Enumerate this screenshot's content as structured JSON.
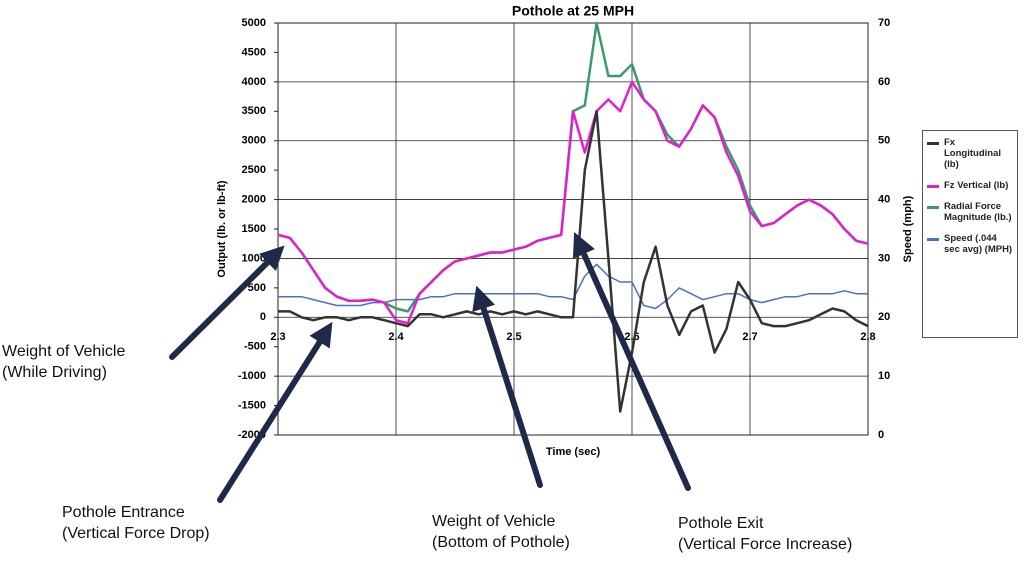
{
  "chart_data": {
    "type": "line",
    "title": "Pothole at 25 MPH",
    "x_label": "Time (sec)",
    "y_label": "Output (lb. or lb-ft)",
    "y2_label": "Speed (mph)",
    "x": [
      2.3,
      2.31,
      2.32,
      2.33,
      2.34,
      2.35,
      2.36,
      2.37,
      2.38,
      2.39,
      2.4,
      2.41,
      2.42,
      2.43,
      2.44,
      2.45,
      2.46,
      2.47,
      2.48,
      2.49,
      2.5,
      2.51,
      2.52,
      2.53,
      2.54,
      2.55,
      2.56,
      2.57,
      2.58,
      2.59,
      2.6,
      2.61,
      2.62,
      2.63,
      2.64,
      2.65,
      2.66,
      2.67,
      2.68,
      2.69,
      2.7,
      2.71,
      2.72,
      2.73,
      2.74,
      2.75,
      2.76,
      2.77,
      2.78,
      2.79,
      2.8
    ],
    "xlim": [
      2.3,
      2.8
    ],
    "xticks": [
      2.3,
      2.4,
      2.5,
      2.6,
      2.7,
      2.8
    ],
    "ylim": [
      -2000,
      5000
    ],
    "yticks": [
      -2000,
      -1500,
      -1000,
      -500,
      0,
      500,
      1000,
      1500,
      2000,
      2500,
      3000,
      3500,
      4000,
      4500,
      5000
    ],
    "y2lim": [
      0,
      70
    ],
    "y2ticks": [
      0,
      10,
      20,
      30,
      40,
      50,
      60,
      70
    ],
    "grid": true,
    "legend": "right",
    "series": [
      {
        "name": "Fx Longitudinal (lb)",
        "color": "#333333",
        "values": [
          100,
          100,
          0,
          -50,
          0,
          0,
          -50,
          0,
          0,
          -50,
          -100,
          -150,
          50,
          50,
          0,
          50,
          100,
          50,
          100,
          50,
          100,
          50,
          100,
          50,
          0,
          0,
          2500,
          3500,
          1000,
          -1600,
          -600,
          600,
          1200,
          200,
          -300,
          100,
          200,
          -600,
          -200,
          600,
          300,
          -100,
          -150,
          -150,
          -100,
          -50,
          50,
          150,
          100,
          -50,
          -150
        ]
      },
      {
        "name": "Fz Vertical (lb)",
        "color": "#e020d0",
        "values": [
          1400,
          1350,
          1100,
          800,
          500,
          350,
          280,
          280,
          300,
          250,
          -50,
          -100,
          400,
          600,
          800,
          950,
          1000,
          1050,
          1100,
          1100,
          1150,
          1200,
          1300,
          1350,
          1400,
          3500,
          2800,
          3500,
          3700,
          3500,
          4000,
          3700,
          3500,
          3000,
          2900,
          3200,
          3600,
          3400,
          2800,
          2400,
          1800,
          1550,
          1600,
          1750,
          1900,
          2000,
          1900,
          1750,
          1500,
          1300,
          1250
        ]
      },
      {
        "name": "Radial Force Magnitude (lb.)",
        "color": "#3a9a68",
        "values": [
          1400,
          1350,
          1100,
          800,
          500,
          350,
          280,
          280,
          300,
          250,
          150,
          100,
          400,
          600,
          800,
          950,
          1000,
          1050,
          1100,
          1100,
          1150,
          1200,
          1300,
          1350,
          1400,
          3500,
          3600,
          5000,
          4100,
          4100,
          4300,
          3700,
          3500,
          3100,
          2900,
          3200,
          3600,
          3400,
          2900,
          2500,
          1900,
          1550,
          1600,
          1750,
          1900,
          2000,
          1900,
          1750,
          1500,
          1300,
          1250
        ]
      },
      {
        "name": "Speed (.044 sec avg) (MPH)",
        "color": "#4a70c8",
        "axis": "y2",
        "values": [
          23.5,
          23.5,
          23.5,
          23,
          22.5,
          22,
          22,
          22,
          22.5,
          22.5,
          23,
          23,
          23,
          23.5,
          23.5,
          24,
          24,
          24,
          24,
          24,
          24,
          24,
          24,
          23.5,
          23.5,
          23,
          27,
          29,
          27,
          26,
          26,
          22,
          21.5,
          23,
          25,
          24,
          23,
          23.5,
          24,
          24,
          23,
          22.5,
          23,
          23.5,
          23.5,
          24,
          24,
          24,
          24.5,
          24,
          24
        ]
      }
    ],
    "annotations": [
      {
        "lines": [
          "Weight of Vehicle",
          "(While Driving)"
        ]
      },
      {
        "lines": [
          "Pothole Entrance",
          "(Vertical Force Drop)"
        ]
      },
      {
        "lines": [
          "Weight of Vehicle",
          "(Bottom of Pothole)"
        ]
      },
      {
        "lines": [
          "Pothole Exit",
          "(Vertical Force Increase)"
        ]
      }
    ]
  }
}
